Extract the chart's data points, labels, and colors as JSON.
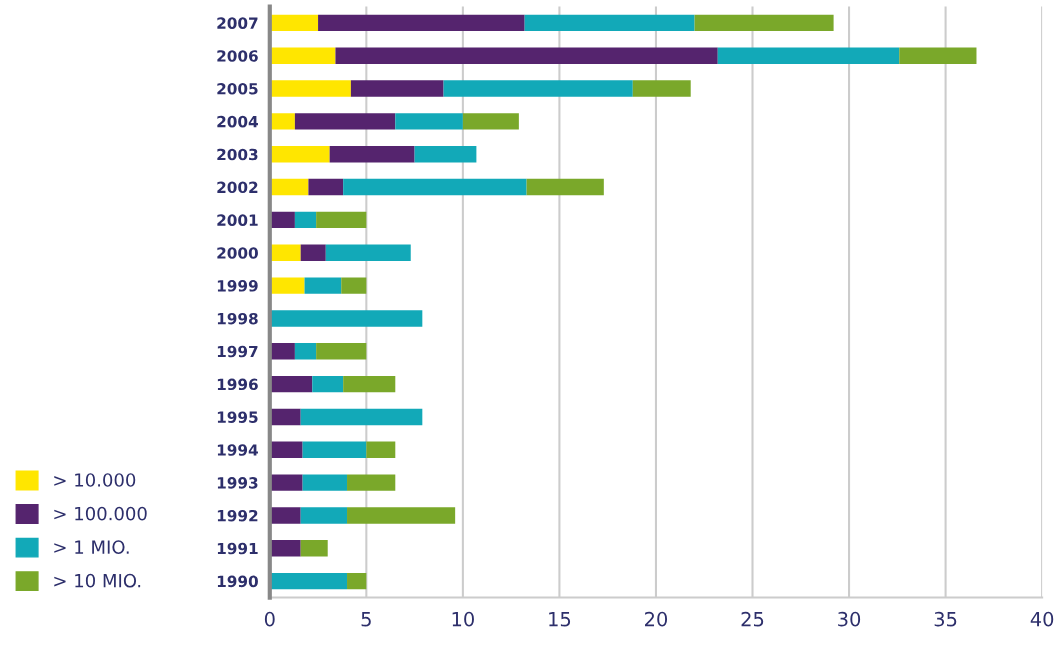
{
  "chart_data": {
    "type": "bar",
    "orientation": "horizontal",
    "stacked": true,
    "categories": [
      "2007",
      "2006",
      "2005",
      "2004",
      "2003",
      "2002",
      "2001",
      "2000",
      "1999",
      "1998",
      "1997",
      "1996",
      "1995",
      "1994",
      "1993",
      "1992",
      "1991",
      "1990"
    ],
    "series": [
      {
        "name": "> 10.000",
        "color": "#ffe600",
        "values": [
          2.5,
          3.4,
          4.2,
          1.3,
          3.1,
          2.0,
          0,
          1.6,
          1.8,
          0,
          0,
          0,
          0,
          0,
          0,
          0,
          0,
          0
        ]
      },
      {
        "name": "> 100.000",
        "color": "#55246e",
        "values": [
          10.7,
          19.8,
          4.8,
          5.2,
          4.4,
          1.8,
          1.3,
          1.3,
          0,
          0,
          1.3,
          2.2,
          1.6,
          1.7,
          1.7,
          1.6,
          1.6,
          0
        ]
      },
      {
        "name": "> 1 MIO.",
        "color": "#12a9b8",
        "values": [
          8.8,
          9.4,
          9.8,
          3.5,
          3.2,
          9.5,
          1.1,
          4.4,
          1.9,
          7.9,
          1.1,
          1.6,
          6.3,
          3.3,
          2.3,
          2.4,
          0,
          4.0
        ]
      },
      {
        "name": "> 10 MIO.",
        "color": "#7aa82a",
        "values": [
          7.2,
          4.0,
          3.0,
          2.9,
          0,
          4.0,
          2.6,
          0,
          1.3,
          0,
          2.6,
          2.7,
          0,
          1.5,
          2.5,
          5.6,
          1.4,
          1.0
        ]
      }
    ],
    "xlim": [
      0,
      40
    ],
    "xticks": [
      0,
      5,
      10,
      15,
      20,
      25,
      30,
      35,
      40
    ],
    "grid": "x",
    "legend": "bottom left"
  }
}
